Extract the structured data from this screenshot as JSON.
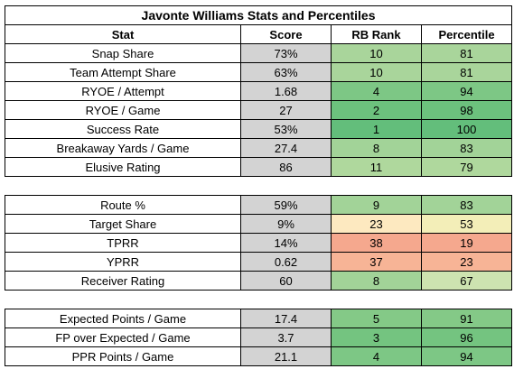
{
  "title": "Javonte Williams Stats and Percentiles",
  "headers": [
    "Stat",
    "Score",
    "RB Rank",
    "Percentile"
  ],
  "sections": [
    {
      "rows": [
        {
          "stat": "Snap Share",
          "score": "73%",
          "rank": "10",
          "percentile": "81",
          "rank_color": "#a9d59b",
          "pct_color": "#a9d59b"
        },
        {
          "stat": "Team Attempt Share",
          "score": "63%",
          "rank": "10",
          "percentile": "81",
          "rank_color": "#a9d59b",
          "pct_color": "#a9d59b"
        },
        {
          "stat": "RYOE / Attempt",
          "score": "1.68",
          "rank": "4",
          "percentile": "94",
          "rank_color": "#7dc785",
          "pct_color": "#7dc785"
        },
        {
          "stat": "RYOE / Game",
          "score": "27",
          "rank": "2",
          "percentile": "98",
          "rank_color": "#6cc17d",
          "pct_color": "#6cc17d"
        },
        {
          "stat": "Success Rate",
          "score": "53%",
          "rank": "1",
          "percentile": "100",
          "rank_color": "#63be7b",
          "pct_color": "#63be7b"
        },
        {
          "stat": "Breakaway Yards / Game",
          "score": "27.4",
          "rank": "8",
          "percentile": "83",
          "rank_color": "#a2d398",
          "pct_color": "#a2d398"
        },
        {
          "stat": "Elusive Rating",
          "score": "86",
          "rank": "11",
          "percentile": "79",
          "rank_color": "#afd89d",
          "pct_color": "#afd89d"
        }
      ]
    },
    {
      "rows": [
        {
          "stat": "Route %",
          "score": "59%",
          "rank": "9",
          "percentile": "83",
          "rank_color": "#a2d398",
          "pct_color": "#a2d398"
        },
        {
          "stat": "Target Share",
          "score": "9%",
          "rank": "23",
          "percentile": "53",
          "rank_color": "#fde9c0",
          "pct_color": "#f3eeb8"
        },
        {
          "stat": "TPRR",
          "score": "14%",
          "rank": "38",
          "percentile": "19",
          "rank_color": "#f5a88e",
          "pct_color": "#f5a88e"
        },
        {
          "stat": "YPRR",
          "score": "0.62",
          "rank": "37",
          "percentile": "23",
          "rank_color": "#f7b496",
          "pct_color": "#f7b496"
        },
        {
          "stat": "Receiver Rating",
          "score": "60",
          "rank": "8",
          "percentile": "67",
          "rank_color": "#a2d398",
          "pct_color": "#cde3b0"
        }
      ]
    },
    {
      "rows": [
        {
          "stat": "Expected Points / Game",
          "score": "17.4",
          "rank": "5",
          "percentile": "91",
          "rank_color": "#84c987",
          "pct_color": "#84c987"
        },
        {
          "stat": "FP over Expected / Game",
          "score": "3.7",
          "rank": "3",
          "percentile": "96",
          "rank_color": "#74c480",
          "pct_color": "#74c480"
        },
        {
          "stat": "PPR Points / Game",
          "score": "21.1",
          "rank": "4",
          "percentile": "94",
          "rank_color": "#7dc785",
          "pct_color": "#7dc785"
        }
      ]
    }
  ]
}
